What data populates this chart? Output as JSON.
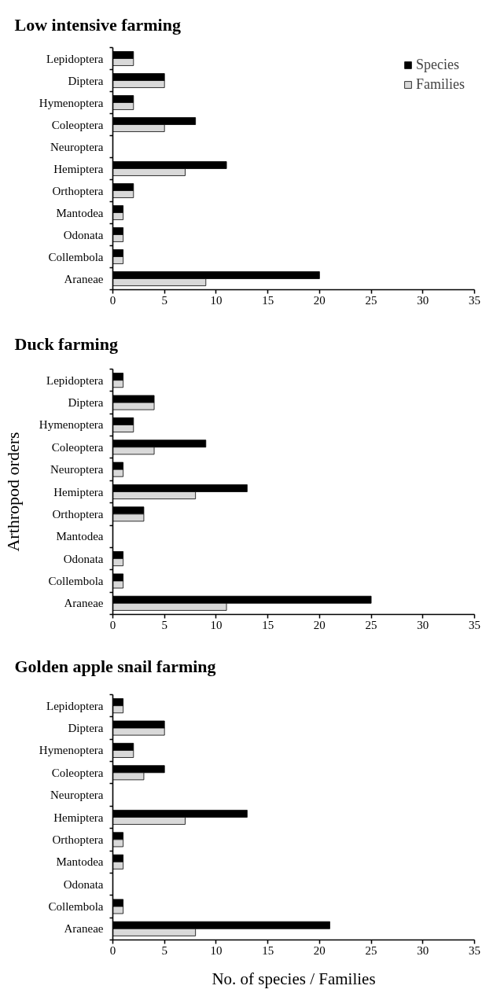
{
  "chart_data": [
    {
      "type": "bar",
      "orientation": "horizontal",
      "title": "Low intensive farming",
      "categories": [
        "Lepidoptera",
        "Diptera",
        "Hymenoptera",
        "Coleoptera",
        "Neuroptera",
        "Hemiptera",
        "Orthoptera",
        "Mantodea",
        "Odonata",
        "Collembola",
        "Araneae"
      ],
      "series": [
        {
          "name": "Species",
          "color": "#000000",
          "values": [
            2,
            5,
            2,
            8,
            0,
            11,
            2,
            1,
            1,
            1,
            20
          ]
        },
        {
          "name": "Families",
          "color": "#d9d9d9",
          "values": [
            2,
            5,
            2,
            5,
            0,
            7,
            2,
            1,
            1,
            1,
            9
          ]
        }
      ],
      "xlim": [
        0,
        35
      ],
      "xticks": [
        0,
        5,
        10,
        15,
        20,
        25,
        30,
        35
      ],
      "legend": "top right"
    },
    {
      "type": "bar",
      "orientation": "horizontal",
      "title": "Duck farming",
      "ylabel": "Arthropod orders",
      "categories": [
        "Lepidoptera",
        "Diptera",
        "Hymenoptera",
        "Coleoptera",
        "Neuroptera",
        "Hemiptera",
        "Orthoptera",
        "Mantodea",
        "Odonata",
        "Collembola",
        "Araneae"
      ],
      "series": [
        {
          "color": "#000000",
          "values": [
            1,
            4,
            2,
            9,
            1,
            13,
            3,
            0,
            1,
            1,
            25
          ]
        },
        {
          "color": "#d9d9d9",
          "values": [
            1,
            4,
            2,
            4,
            1,
            8,
            3,
            0,
            1,
            1,
            11
          ]
        }
      ],
      "xlim": [
        0,
        35
      ],
      "xticks": [
        0,
        5,
        10,
        15,
        20,
        25,
        30,
        35
      ]
    },
    {
      "type": "bar",
      "orientation": "horizontal",
      "title": "Golden apple snail farming",
      "xlabel": "No. of species / Families",
      "categories": [
        "Lepidoptera",
        "Diptera",
        "Hymenoptera",
        "Coleoptera",
        "Neuroptera",
        "Hemiptera",
        "Orthoptera",
        "Mantodea",
        "Odonata",
        "Collembola",
        "Araneae"
      ],
      "series": [
        {
          "color": "#000000",
          "values": [
            1,
            5,
            2,
            5,
            0,
            13,
            1,
            1,
            0,
            1,
            21
          ]
        },
        {
          "color": "#d9d9d9",
          "values": [
            1,
            5,
            2,
            3,
            0,
            7,
            1,
            1,
            0,
            1,
            8
          ]
        }
      ],
      "xlim": [
        0,
        35
      ],
      "xticks": [
        0,
        5,
        10,
        15,
        20,
        25,
        30,
        35
      ]
    }
  ]
}
